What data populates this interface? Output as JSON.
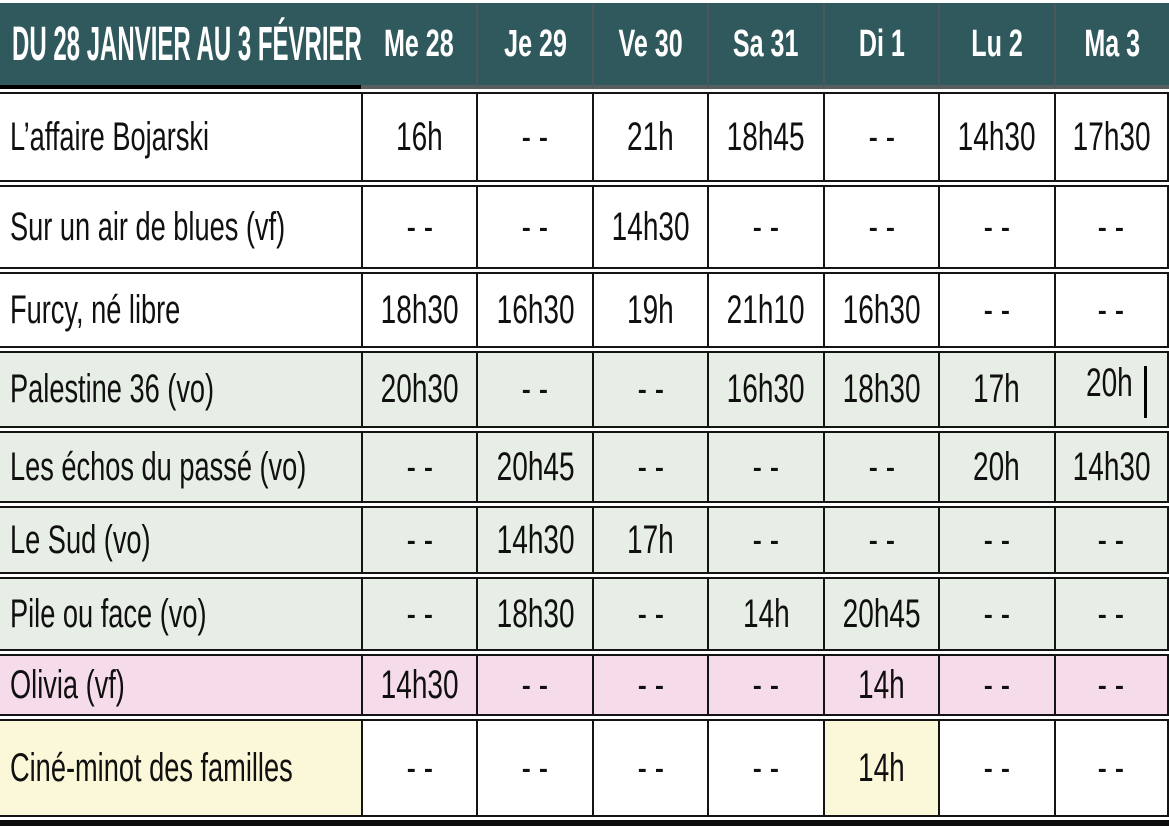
{
  "schedule": {
    "period_title": "DU 28 JANVIER AU 3 FÉVRIER",
    "day_headers": [
      "Me 28",
      "Je 29",
      "Ve 30",
      "Sa 31",
      "Di 1",
      "Lu 2",
      "Ma 3"
    ],
    "no_show_marker": "- -",
    "films": [
      {
        "title": "L’affaire Bojarski",
        "row_style": "white",
        "times": [
          "16h",
          "- -",
          "21h",
          "18h45",
          "- -",
          "14h30",
          "17h30"
        ]
      },
      {
        "title": "Sur un air de blues (vf)",
        "row_style": "white",
        "times": [
          "- -",
          "- -",
          "14h30",
          "- -",
          "- -",
          "- -",
          "- -"
        ]
      },
      {
        "title": "Furcy, né libre",
        "row_style": "white",
        "times": [
          "18h30",
          "16h30",
          "19h",
          "21h10",
          "16h30",
          "- -",
          "- -"
        ]
      },
      {
        "title": "Palestine 36 (vo)",
        "row_style": "green",
        "times": [
          "20h30",
          "- -",
          "- -",
          "16h30",
          "18h30",
          "17h",
          "20h"
        ],
        "caret_cell": 6
      },
      {
        "title": "Les échos du passé (vo)",
        "row_style": "green",
        "times": [
          "- -",
          "20h45",
          "- -",
          "- -",
          "- -",
          "20h",
          "14h30"
        ]
      },
      {
        "title": "Le Sud (vo)",
        "row_style": "green",
        "times": [
          "- -",
          "14h30",
          "17h",
          "- -",
          "- -",
          "- -",
          "- -"
        ]
      },
      {
        "title": "Pile ou face (vo)",
        "row_style": "green",
        "times": [
          "- -",
          "18h30",
          "- -",
          "14h",
          "20h45",
          "- -",
          "- -"
        ]
      },
      {
        "title": "Olivia (vf)",
        "row_style": "pink",
        "times": [
          "14h30",
          "- -",
          "- -",
          "- -",
          "14h",
          "- -",
          "- -"
        ]
      },
      {
        "title": "Ciné-minot des familles",
        "row_style": "yellow-title",
        "times": [
          "- -",
          "- -",
          "- -",
          "- -",
          "14h",
          "- -",
          "- -"
        ],
        "highlight_cells": [
          4
        ]
      }
    ],
    "colors": {
      "header_bg": "#30595D",
      "header_text": "#FFFFFF",
      "green_row": "#E7EEE5",
      "pink_row": "#F6DCEA",
      "yellow_cell": "#FAF8D8",
      "white_row": "#FFFFFF",
      "grid_border": "#141414",
      "header_separator": "#4A585B"
    }
  }
}
